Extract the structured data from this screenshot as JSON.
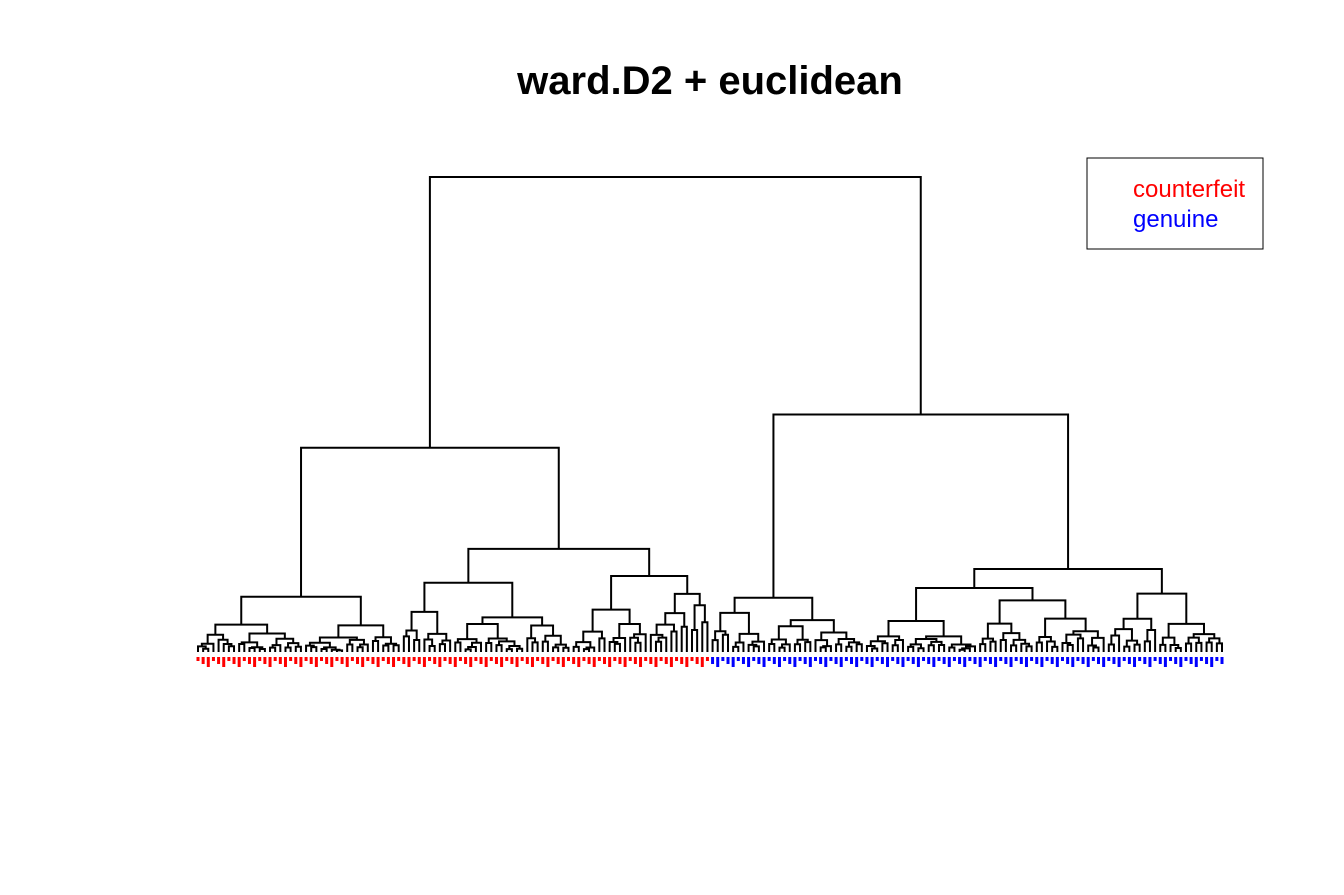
{
  "chart_data": {
    "type": "dendrogram",
    "title": "ward.D2 + euclidean",
    "xlabel": "",
    "ylabel": "",
    "axes_visible": false,
    "leaf_label_groups": [
      "counterfeit",
      "genuine"
    ],
    "leaf_counts": {
      "counterfeit": 100,
      "genuine": 100
    },
    "colors": {
      "counterfeit": "#ff0000",
      "genuine": "#0000ff",
      "branch": "#000000"
    },
    "legend": {
      "placement": "top-right",
      "entries": [
        {
          "label": "counterfeit",
          "color": "#ff0000"
        },
        {
          "label": "genuine",
          "color": "#0000ff"
        }
      ]
    },
    "top_merges": [
      {
        "name": "root",
        "height": 1.0
      },
      {
        "name": "counterfeit-cluster",
        "height": 0.43
      },
      {
        "name": "genuine-cluster",
        "height": 0.5
      },
      {
        "name": "counterfeit-left",
        "height": 0.18
      },
      {
        "name": "counterfeit-right",
        "height": 0.29
      },
      {
        "name": "genuine-left",
        "height": 0.16
      },
      {
        "name": "genuine-right",
        "height": 0.29
      }
    ]
  }
}
